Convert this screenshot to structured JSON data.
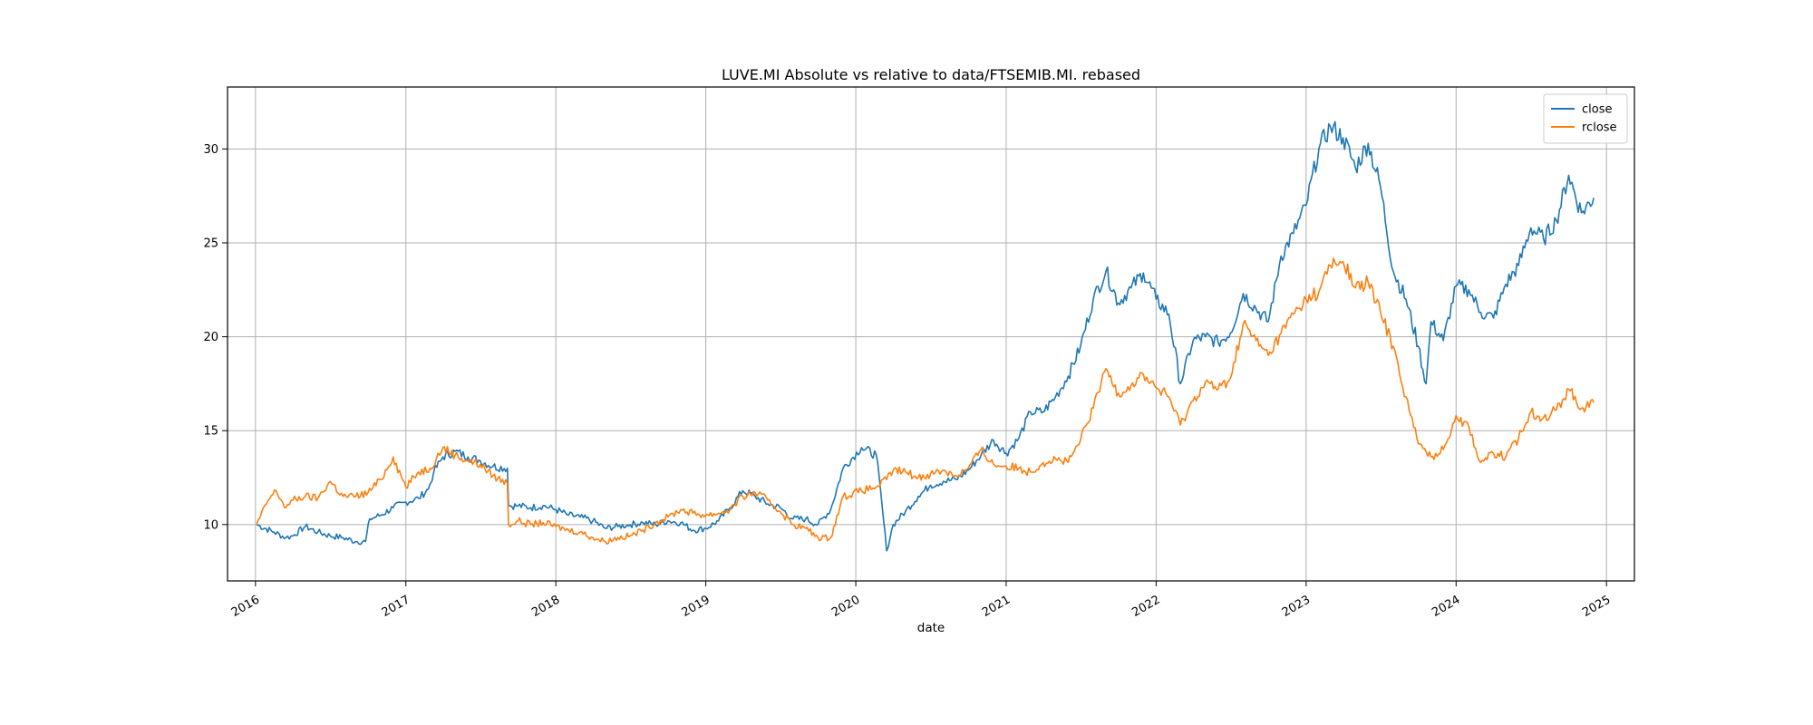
{
  "chart_data": {
    "type": "line",
    "title": "LUVE.MI Absolute vs relative to data/FTSEMIB.MI. rebased",
    "xlabel": "date",
    "ylabel": "",
    "xlim": [
      "2015-10-25",
      "2025-03-10"
    ],
    "ylim": [
      7.0,
      33.3
    ],
    "x_ticks": [
      "2016",
      "2017",
      "2018",
      "2019",
      "2020",
      "2021",
      "2022",
      "2023",
      "2024",
      "2025"
    ],
    "y_ticks": [
      10,
      15,
      20,
      25,
      30
    ],
    "grid": true,
    "legend_position": "upper right",
    "series": [
      {
        "name": "close",
        "color": "#1f77b4",
        "points": [
          [
            "2016-01-04",
            10.0
          ],
          [
            "2016-02-15",
            9.6
          ],
          [
            "2016-03-15",
            9.3
          ],
          [
            "2016-04-01",
            9.4
          ],
          [
            "2016-05-01",
            9.9
          ],
          [
            "2016-06-01",
            9.6
          ],
          [
            "2016-07-01",
            9.4
          ],
          [
            "2016-08-01",
            9.3
          ],
          [
            "2016-09-01",
            9.1
          ],
          [
            "2016-09-25",
            9.1
          ],
          [
            "2016-10-05",
            10.3
          ],
          [
            "2016-11-01",
            10.5
          ],
          [
            "2016-12-01",
            10.9
          ],
          [
            "2017-01-01",
            11.2
          ],
          [
            "2017-02-01",
            11.4
          ],
          [
            "2017-02-25",
            11.9
          ],
          [
            "2017-03-10",
            12.8
          ],
          [
            "2017-04-01",
            13.6
          ],
          [
            "2017-05-01",
            13.9
          ],
          [
            "2017-06-01",
            13.6
          ],
          [
            "2017-07-01",
            13.4
          ],
          [
            "2017-08-01",
            13.1
          ],
          [
            "2017-09-05",
            13.0
          ],
          [
            "2017-09-08",
            11.0
          ],
          [
            "2017-10-01",
            11.0
          ],
          [
            "2017-11-01",
            10.9
          ],
          [
            "2017-12-01",
            11.0
          ],
          [
            "2018-01-01",
            10.8
          ],
          [
            "2018-02-01",
            10.5
          ],
          [
            "2018-03-01",
            10.4
          ],
          [
            "2018-04-01",
            10.2
          ],
          [
            "2018-05-01",
            9.8
          ],
          [
            "2018-06-01",
            9.9
          ],
          [
            "2018-07-01",
            10.0
          ],
          [
            "2018-08-01",
            10.1
          ],
          [
            "2018-09-01",
            10.0
          ],
          [
            "2018-10-01",
            10.2
          ],
          [
            "2018-11-01",
            10.1
          ],
          [
            "2018-12-01",
            9.7
          ],
          [
            "2019-01-01",
            9.8
          ],
          [
            "2019-02-01",
            10.2
          ],
          [
            "2019-03-01",
            10.9
          ],
          [
            "2019-04-01",
            11.8
          ],
          [
            "2019-05-01",
            11.5
          ],
          [
            "2019-06-01",
            11.1
          ],
          [
            "2019-07-01",
            10.9
          ],
          [
            "2019-08-01",
            10.3
          ],
          [
            "2019-09-01",
            10.3
          ],
          [
            "2019-10-01",
            10.0
          ],
          [
            "2019-11-01",
            10.8
          ],
          [
            "2019-12-01",
            13.0
          ],
          [
            "2020-01-15",
            14.1
          ],
          [
            "2020-02-20",
            13.7
          ],
          [
            "2020-03-05",
            11.0
          ],
          [
            "2020-03-16",
            8.6
          ],
          [
            "2020-04-01",
            10.0
          ],
          [
            "2020-05-01",
            10.7
          ],
          [
            "2020-06-01",
            11.5
          ],
          [
            "2020-07-01",
            12.1
          ],
          [
            "2020-08-01",
            12.3
          ],
          [
            "2020-09-01",
            12.4
          ],
          [
            "2020-10-01",
            12.9
          ],
          [
            "2020-11-01",
            13.7
          ],
          [
            "2020-12-01",
            14.5
          ],
          [
            "2021-01-01",
            13.8
          ],
          [
            "2021-02-01",
            14.6
          ],
          [
            "2021-03-01",
            16.0
          ],
          [
            "2021-04-01",
            16.0
          ],
          [
            "2021-05-01",
            16.8
          ],
          [
            "2021-06-01",
            17.9
          ],
          [
            "2021-07-01",
            19.5
          ],
          [
            "2021-08-01",
            22.0
          ],
          [
            "2021-09-01",
            23.5
          ],
          [
            "2021-10-01",
            21.8
          ],
          [
            "2021-11-01",
            22.6
          ],
          [
            "2021-12-01",
            23.4
          ],
          [
            "2022-01-01",
            22.0
          ],
          [
            "2022-02-01",
            21.2
          ],
          [
            "2022-03-01",
            17.5
          ],
          [
            "2022-04-01",
            19.8
          ],
          [
            "2022-05-01",
            20.0
          ],
          [
            "2022-06-01",
            19.7
          ],
          [
            "2022-07-01",
            20.2
          ],
          [
            "2022-08-01",
            22.3
          ],
          [
            "2022-09-01",
            21.5
          ],
          [
            "2022-10-01",
            20.8
          ],
          [
            "2022-11-01",
            24.3
          ],
          [
            "2022-12-01",
            25.5
          ],
          [
            "2023-01-01",
            27.0
          ],
          [
            "2023-02-01",
            30.0
          ],
          [
            "2023-03-01",
            31.2
          ],
          [
            "2023-04-01",
            30.6
          ],
          [
            "2023-05-01",
            29.0
          ],
          [
            "2023-06-01",
            30.3
          ],
          [
            "2023-07-01",
            28.0
          ],
          [
            "2023-08-01",
            23.5
          ],
          [
            "2023-09-01",
            22.0
          ],
          [
            "2023-10-01",
            19.5
          ],
          [
            "2023-10-20",
            17.5
          ],
          [
            "2023-11-01",
            20.8
          ],
          [
            "2023-12-01",
            19.8
          ],
          [
            "2024-01-01",
            22.7
          ],
          [
            "2024-02-01",
            22.5
          ],
          [
            "2024-03-01",
            21.3
          ],
          [
            "2024-04-01",
            21.0
          ],
          [
            "2024-05-01",
            22.8
          ],
          [
            "2024-06-01",
            23.8
          ],
          [
            "2024-07-01",
            25.8
          ],
          [
            "2024-08-01",
            25.2
          ],
          [
            "2024-09-01",
            26.2
          ],
          [
            "2024-10-01",
            28.6
          ],
          [
            "2024-11-01",
            26.6
          ],
          [
            "2024-12-01",
            27.4
          ]
        ]
      },
      {
        "name": "rclose",
        "color": "#ff7f0e",
        "points": [
          [
            "2016-01-04",
            10.0
          ],
          [
            "2016-02-01",
            11.3
          ],
          [
            "2016-02-20",
            11.8
          ],
          [
            "2016-03-15",
            10.9
          ],
          [
            "2016-04-01",
            11.3
          ],
          [
            "2016-05-01",
            11.5
          ],
          [
            "2016-06-01",
            11.4
          ],
          [
            "2016-07-01",
            12.3
          ],
          [
            "2016-08-01",
            11.5
          ],
          [
            "2016-09-01",
            11.5
          ],
          [
            "2016-10-01",
            11.7
          ],
          [
            "2016-11-01",
            12.4
          ],
          [
            "2016-12-01",
            13.6
          ],
          [
            "2017-01-01",
            12.0
          ],
          [
            "2017-02-01",
            12.8
          ],
          [
            "2017-03-01",
            13.0
          ],
          [
            "2017-04-01",
            14.1
          ],
          [
            "2017-05-01",
            13.7
          ],
          [
            "2017-06-01",
            13.4
          ],
          [
            "2017-07-01",
            13.2
          ],
          [
            "2017-08-01",
            12.6
          ],
          [
            "2017-09-05",
            12.2
          ],
          [
            "2017-09-08",
            10.0
          ],
          [
            "2017-10-01",
            10.2
          ],
          [
            "2017-11-01",
            10.0
          ],
          [
            "2017-12-01",
            10.1
          ],
          [
            "2018-01-01",
            9.9
          ],
          [
            "2018-02-01",
            9.7
          ],
          [
            "2018-03-01",
            9.6
          ],
          [
            "2018-04-01",
            9.3
          ],
          [
            "2018-05-01",
            9.1
          ],
          [
            "2018-06-01",
            9.3
          ],
          [
            "2018-07-01",
            9.4
          ],
          [
            "2018-08-01",
            9.7
          ],
          [
            "2018-09-01",
            10.1
          ],
          [
            "2018-10-01",
            10.4
          ],
          [
            "2018-11-01",
            10.8
          ],
          [
            "2018-12-01",
            10.6
          ],
          [
            "2019-01-01",
            10.5
          ],
          [
            "2019-02-01",
            10.6
          ],
          [
            "2019-03-01",
            10.8
          ],
          [
            "2019-04-01",
            11.5
          ],
          [
            "2019-05-01",
            11.7
          ],
          [
            "2019-06-01",
            11.3
          ],
          [
            "2019-07-01",
            10.7
          ],
          [
            "2019-08-01",
            10.0
          ],
          [
            "2019-09-01",
            9.8
          ],
          [
            "2019-10-01",
            9.3
          ],
          [
            "2019-11-01",
            9.3
          ],
          [
            "2019-12-01",
            11.5
          ],
          [
            "2020-01-15",
            11.8
          ],
          [
            "2020-02-20",
            12.0
          ],
          [
            "2020-03-16",
            12.4
          ],
          [
            "2020-04-01",
            12.9
          ],
          [
            "2020-05-01",
            12.8
          ],
          [
            "2020-06-01",
            12.5
          ],
          [
            "2020-07-01",
            12.7
          ],
          [
            "2020-08-01",
            12.9
          ],
          [
            "2020-09-01",
            12.6
          ],
          [
            "2020-10-01",
            13.0
          ],
          [
            "2020-11-01",
            14.0
          ],
          [
            "2020-12-01",
            13.2
          ],
          [
            "2021-01-01",
            13.1
          ],
          [
            "2021-02-01",
            13.0
          ],
          [
            "2021-03-01",
            12.8
          ],
          [
            "2021-04-01",
            13.3
          ],
          [
            "2021-05-01",
            13.5
          ],
          [
            "2021-06-01",
            13.3
          ],
          [
            "2021-07-01",
            14.5
          ],
          [
            "2021-08-01",
            16.2
          ],
          [
            "2021-09-01",
            18.3
          ],
          [
            "2021-10-01",
            17.0
          ],
          [
            "2021-11-01",
            17.4
          ],
          [
            "2021-12-01",
            18.0
          ],
          [
            "2022-01-01",
            17.3
          ],
          [
            "2022-02-01",
            16.8
          ],
          [
            "2022-03-01",
            15.3
          ],
          [
            "2022-04-01",
            16.6
          ],
          [
            "2022-05-01",
            17.6
          ],
          [
            "2022-06-01",
            17.2
          ],
          [
            "2022-07-01",
            17.8
          ],
          [
            "2022-08-01",
            20.7
          ],
          [
            "2022-09-01",
            19.8
          ],
          [
            "2022-10-01",
            19.0
          ],
          [
            "2022-11-01",
            20.2
          ],
          [
            "2022-12-01",
            21.2
          ],
          [
            "2023-01-01",
            22.0
          ],
          [
            "2023-02-01",
            22.4
          ],
          [
            "2023-03-01",
            23.8
          ],
          [
            "2023-04-01",
            24.0
          ],
          [
            "2023-05-01",
            22.6
          ],
          [
            "2023-06-01",
            22.9
          ],
          [
            "2023-07-01",
            21.3
          ],
          [
            "2023-08-01",
            19.5
          ],
          [
            "2023-09-01",
            16.8
          ],
          [
            "2023-10-01",
            14.3
          ],
          [
            "2023-11-01",
            13.6
          ],
          [
            "2023-12-01",
            14.0
          ],
          [
            "2024-01-01",
            15.8
          ],
          [
            "2024-02-01",
            15.2
          ],
          [
            "2024-03-01",
            13.3
          ],
          [
            "2024-04-01",
            13.8
          ],
          [
            "2024-05-01",
            13.6
          ],
          [
            "2024-06-01",
            14.6
          ],
          [
            "2024-07-01",
            16.0
          ],
          [
            "2024-08-01",
            15.7
          ],
          [
            "2024-09-01",
            16.1
          ],
          [
            "2024-10-01",
            17.2
          ],
          [
            "2024-11-01",
            16.2
          ],
          [
            "2024-12-01",
            16.5
          ]
        ]
      }
    ]
  }
}
